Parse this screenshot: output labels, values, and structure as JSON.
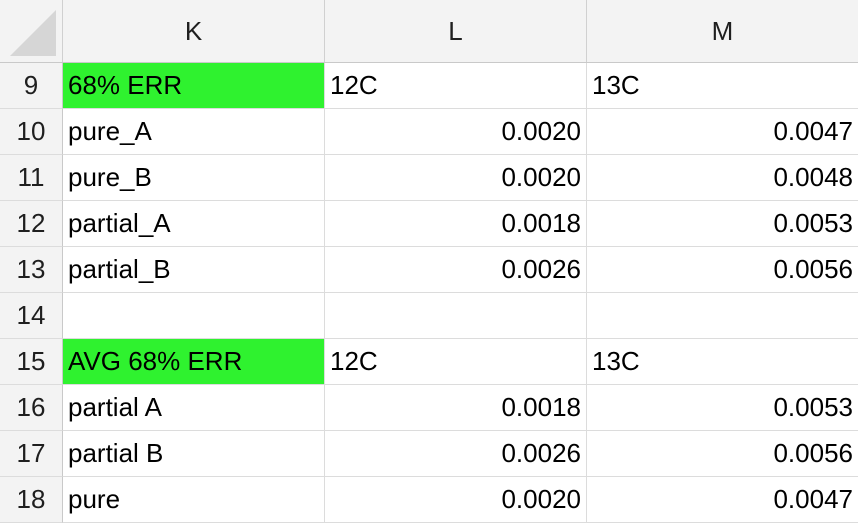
{
  "columns": [
    "K",
    "L",
    "M"
  ],
  "highlight_color": "#2ff22f",
  "rows": [
    {
      "num": "9",
      "k": "68% ERR",
      "l": "12C",
      "m": "13C",
      "k_highlight": true,
      "numeric": false
    },
    {
      "num": "10",
      "k": "pure_A",
      "l": "0.0020",
      "m": "0.0047",
      "k_highlight": false,
      "numeric": true
    },
    {
      "num": "11",
      "k": "pure_B",
      "l": "0.0020",
      "m": "0.0048",
      "k_highlight": false,
      "numeric": true
    },
    {
      "num": "12",
      "k": "partial_A",
      "l": "0.0018",
      "m": "0.0053",
      "k_highlight": false,
      "numeric": true
    },
    {
      "num": "13",
      "k": "partial_B",
      "l": "0.0026",
      "m": "0.0056",
      "k_highlight": false,
      "numeric": true
    },
    {
      "num": "14",
      "k": "",
      "l": "",
      "m": "",
      "k_highlight": false,
      "numeric": false
    },
    {
      "num": "15",
      "k": "AVG 68% ERR",
      "l": "12C",
      "m": "13C",
      "k_highlight": true,
      "numeric": false
    },
    {
      "num": "16",
      "k": "partial A",
      "l": "0.0018",
      "m": "0.0053",
      "k_highlight": false,
      "numeric": true
    },
    {
      "num": "17",
      "k": "partial B",
      "l": "0.0026",
      "m": "0.0056",
      "k_highlight": false,
      "numeric": true
    },
    {
      "num": "18",
      "k": "pure",
      "l": "0.0020",
      "m": "0.0047",
      "k_highlight": false,
      "numeric": true
    }
  ]
}
